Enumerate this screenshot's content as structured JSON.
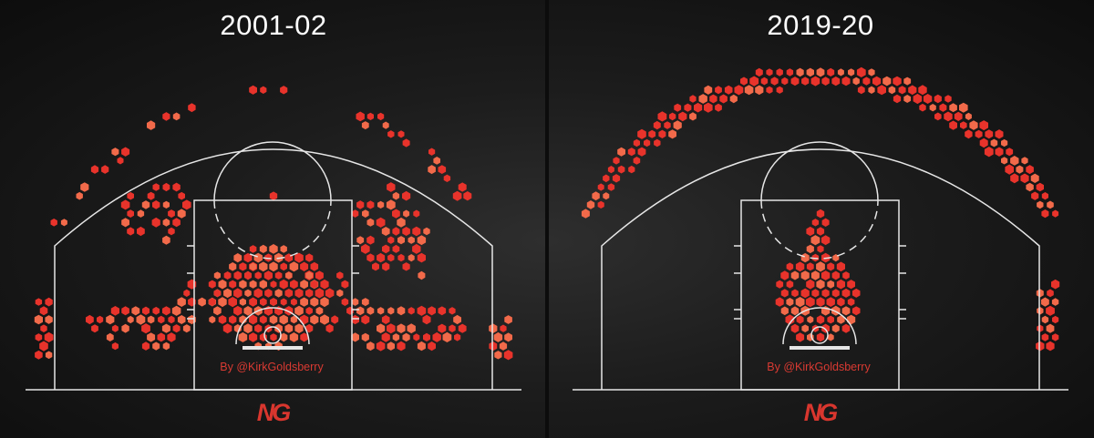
{
  "colors": {
    "hex": "#e8332b",
    "hex_light": "#f26a4a",
    "line": "#e6e6e6",
    "logo": "#d9362e"
  },
  "chart_data": [
    {
      "type": "heatmap",
      "title": "2001-02",
      "credit": "By @KirkGoldsberry",
      "logo": "NG",
      "shot_zones": [
        {
          "zone": "left corner three",
          "x": [
            40,
            52
          ],
          "y": [
            330,
            392
          ],
          "density": "high"
        },
        {
          "zone": "right corner three",
          "x": [
            540,
            560
          ],
          "y": [
            346,
            390
          ],
          "density": "high"
        },
        {
          "zone": "left wing three",
          "x": [
            60,
            205
          ],
          "y": [
            115,
            248
          ],
          "density": "medium"
        },
        {
          "zone": "right wing three",
          "x": [
            400,
            540
          ],
          "y": [
            118,
            232
          ],
          "density": "medium"
        },
        {
          "zone": "top of key three",
          "x": [
            278,
            318
          ],
          "y": [
            92,
            108
          ],
          "density": "high"
        },
        {
          "zone": "left midrange elbow",
          "x": [
            130,
            208
          ],
          "y": [
            202,
            272
          ],
          "density": "medium"
        },
        {
          "zone": "right midrange elbow",
          "x": [
            390,
            472
          ],
          "y": [
            202,
            322
          ],
          "density": "medium"
        },
        {
          "zone": "baseline midrange",
          "x": [
            90,
            515
          ],
          "y": [
            325,
            388
          ],
          "density": "high"
        },
        {
          "zone": "paint",
          "x": [
            235,
            352
          ],
          "y": [
            272,
            372
          ],
          "density": "very high"
        },
        {
          "zone": "lane column",
          "x": [
            290,
            304
          ],
          "y": [
            150,
            220
          ],
          "density": "low"
        }
      ]
    },
    {
      "type": "heatmap",
      "title": "2019-20",
      "credit": "By @KirkGoldsberry",
      "logo": "NG",
      "shot_zones": [
        {
          "zone": "left corner three",
          "x": [
            637,
            655
          ],
          "y": [
            268,
            388
          ],
          "density": "high"
        },
        {
          "zone": "right corner three",
          "x": [
            1140,
            1162
          ],
          "y": [
            312,
            386
          ],
          "density": "high"
        },
        {
          "zone": "above the break three",
          "x": [
            680,
            1138
          ],
          "y": [
            70,
            232
          ],
          "density": "very high"
        },
        {
          "zone": "paint",
          "x": [
            850,
            948
          ],
          "y": [
            238,
            372
          ],
          "density": "very high"
        },
        {
          "zone": "midrange",
          "x": [
            0,
            0
          ],
          "y": [
            0,
            0
          ],
          "density": "minimal"
        }
      ]
    }
  ]
}
